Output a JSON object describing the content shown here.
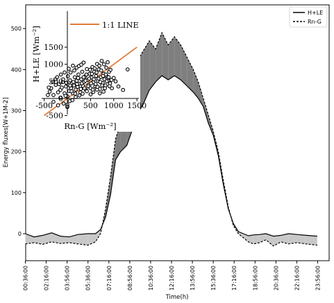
{
  "chart_data": [
    {
      "type": "area",
      "xlabel": "Time(h)",
      "ylabel": "Energy fluxes[W+1M-2]",
      "ylim": [
        -80,
        510
      ],
      "y_ticks": [
        0,
        100,
        200,
        300,
        400,
        500
      ],
      "x_tick_labels": [
        "00:36:00",
        "02:16:00",
        "03:56:00",
        "05:36:00",
        "07:16:00",
        "08:56:00",
        "10:36:00",
        "12:16:00",
        "13:56:00",
        "15:36:00",
        "17:16:00",
        "18:56:00",
        "20:36:00",
        "22:16:00",
        "23:56:00"
      ],
      "legend": {
        "placement": "top-right",
        "entries": [
          "H+LE",
          "Rn-G"
        ]
      },
      "grid": false,
      "colors": {
        "line": "#000000",
        "fill_positive": "#7f7f7f",
        "fill_negative": "#c8c8c8"
      },
      "x_hours": [
        0.6,
        1.3,
        2.0,
        2.7,
        3.4,
        4.1,
        4.8,
        5.6,
        6.2,
        6.6,
        7.0,
        7.4,
        7.8,
        8.2,
        8.7,
        9.1,
        9.5,
        10.0,
        10.5,
        11.0,
        11.5,
        12.0,
        12.5,
        13.0,
        13.5,
        14.0,
        14.4,
        14.8,
        15.2,
        15.6,
        16.0,
        16.4,
        16.8,
        17.2,
        17.6,
        18.0,
        18.4,
        18.8,
        19.3,
        19.8,
        20.4,
        21.0,
        21.6,
        22.3,
        23.0,
        23.9
      ],
      "series": [
        {
          "name": "H+LE",
          "line_style": "solid",
          "values": [
            0,
            -8,
            -4,
            2,
            -6,
            -8,
            -2,
            0,
            0,
            10,
            40,
            95,
            180,
            200,
            215,
            250,
            290,
            315,
            350,
            370,
            385,
            375,
            385,
            375,
            360,
            345,
            330,
            310,
            270,
            240,
            190,
            120,
            60,
            25,
            5,
            0,
            -5,
            -3,
            -2,
            0,
            -6,
            -4,
            0,
            -2,
            -4,
            -6
          ]
        },
        {
          "name": "Rn-G",
          "line_style": "dashed",
          "values": [
            -25,
            -22,
            -26,
            -20,
            -24,
            -22,
            -25,
            -28,
            -20,
            0,
            60,
            140,
            230,
            270,
            320,
            380,
            420,
            445,
            470,
            450,
            490,
            460,
            480,
            460,
            430,
            400,
            370,
            330,
            290,
            250,
            200,
            130,
            65,
            20,
            0,
            -10,
            -20,
            -25,
            -22,
            -15,
            -30,
            -20,
            -25,
            -22,
            -25,
            -28
          ]
        }
      ]
    },
    {
      "type": "scatter",
      "xlabel": "Rn-G [Wm⁻²]",
      "ylabel": "H+LE [Wm⁻²]",
      "x_ticks": [
        -500,
        0,
        500,
        1000,
        1500
      ],
      "y_ticks": [
        -500,
        0,
        500,
        1000,
        1500
      ],
      "xlim": [
        -500,
        1500
      ],
      "ylim": [
        -500,
        1500
      ],
      "legend": {
        "placement": "top-left",
        "entries": [
          "1:1 LINE"
        ]
      },
      "reference_line": {
        "label": "1:1 LINE",
        "slope": 1,
        "color": "#e07b39"
      },
      "points": [
        [
          -420,
          100
        ],
        [
          -380,
          200
        ],
        [
          -350,
          300
        ],
        [
          -300,
          100
        ],
        [
          -250,
          400
        ],
        [
          -200,
          180
        ],
        [
          -150,
          250
        ],
        [
          -120,
          320
        ],
        [
          -100,
          480
        ],
        [
          -60,
          150
        ],
        [
          -30,
          350
        ],
        [
          0,
          60
        ],
        [
          20,
          400
        ],
        [
          40,
          220
        ],
        [
          60,
          530
        ],
        [
          80,
          300
        ],
        [
          100,
          450
        ],
        [
          120,
          150
        ],
        [
          140,
          380
        ],
        [
          160,
          620
        ],
        [
          180,
          260
        ],
        [
          200,
          520
        ],
        [
          220,
          340
        ],
        [
          240,
          700
        ],
        [
          260,
          430
        ],
        [
          280,
          180
        ],
        [
          300,
          560
        ],
        [
          320,
          780
        ],
        [
          340,
          360
        ],
        [
          360,
          480
        ],
        [
          380,
          640
        ],
        [
          400,
          250
        ],
        [
          420,
          860
        ],
        [
          440,
          540
        ],
        [
          460,
          400
        ],
        [
          480,
          720
        ],
        [
          500,
          300
        ],
        [
          520,
          610
        ],
        [
          540,
          920
        ],
        [
          560,
          470
        ],
        [
          580,
          780
        ],
        [
          600,
          360
        ],
        [
          620,
          660
        ],
        [
          640,
          1010
        ],
        [
          660,
          520
        ],
        [
          680,
          850
        ],
        [
          700,
          280
        ],
        [
          720,
          620
        ],
        [
          740,
          1100
        ],
        [
          760,
          450
        ],
        [
          780,
          720
        ],
        [
          800,
          560
        ],
        [
          820,
          380
        ],
        [
          840,
          900
        ],
        [
          860,
          640
        ],
        [
          880,
          520
        ],
        [
          900,
          780
        ],
        [
          920,
          440
        ],
        [
          960,
          300
        ],
        [
          1000,
          600
        ],
        [
          1040,
          500
        ],
        [
          1100,
          350
        ],
        [
          1200,
          250
        ],
        [
          -300,
          -100
        ],
        [
          -200,
          -200
        ],
        [
          -150,
          20
        ],
        [
          -80,
          -150
        ],
        [
          -40,
          80
        ],
        [
          0,
          -250
        ],
        [
          50,
          -80
        ],
        [
          10,
          650
        ],
        [
          70,
          760
        ],
        [
          150,
          820
        ],
        [
          200,
          900
        ],
        [
          250,
          950
        ],
        [
          300,
          990
        ],
        [
          350,
          1050
        ],
        [
          110,
          -50
        ],
        [
          180,
          40
        ],
        [
          260,
          90
        ],
        [
          330,
          140
        ],
        [
          -220,
          620
        ],
        [
          -140,
          700
        ],
        [
          -60,
          760
        ],
        [
          30,
          870
        ],
        [
          120,
          960
        ],
        [
          1300,
          850
        ],
        [
          420,
          210
        ],
        [
          500,
          120
        ],
        [
          560,
          190
        ],
        [
          640,
          260
        ],
        [
          700,
          150
        ],
        [
          780,
          200
        ],
        [
          -400,
          320
        ],
        [
          -320,
          480
        ],
        [
          -260,
          560
        ],
        [
          -180,
          420
        ],
        [
          -90,
          560
        ],
        [
          -20,
          460
        ],
        [
          60,
          380
        ],
        [
          90,
          210
        ],
        [
          130,
          480
        ],
        [
          170,
          140
        ],
        [
          210,
          420
        ],
        [
          230,
          600
        ],
        [
          290,
          280
        ],
        [
          310,
          440
        ],
        [
          350,
          620
        ],
        [
          370,
          300
        ],
        [
          390,
          520
        ],
        [
          410,
          700
        ],
        [
          450,
          360
        ],
        [
          470,
          580
        ],
        [
          490,
          840
        ],
        [
          510,
          440
        ],
        [
          530,
          720
        ],
        [
          550,
          260
        ],
        [
          570,
          560
        ],
        [
          590,
          880
        ],
        [
          610,
          420
        ],
        [
          630,
          760
        ],
        [
          650,
          340
        ],
        [
          670,
          580
        ],
        [
          690,
          960
        ],
        [
          710,
          480
        ],
        [
          730,
          820
        ],
        [
          750,
          380
        ],
        [
          770,
          660
        ],
        [
          790,
          1000
        ],
        [
          810,
          300
        ],
        [
          830,
          700
        ],
        [
          850,
          500
        ],
        [
          870,
          1060
        ],
        [
          890,
          620
        ],
        [
          910,
          360
        ],
        [
          930,
          840
        ],
        [
          950,
          540
        ]
      ]
    }
  ]
}
